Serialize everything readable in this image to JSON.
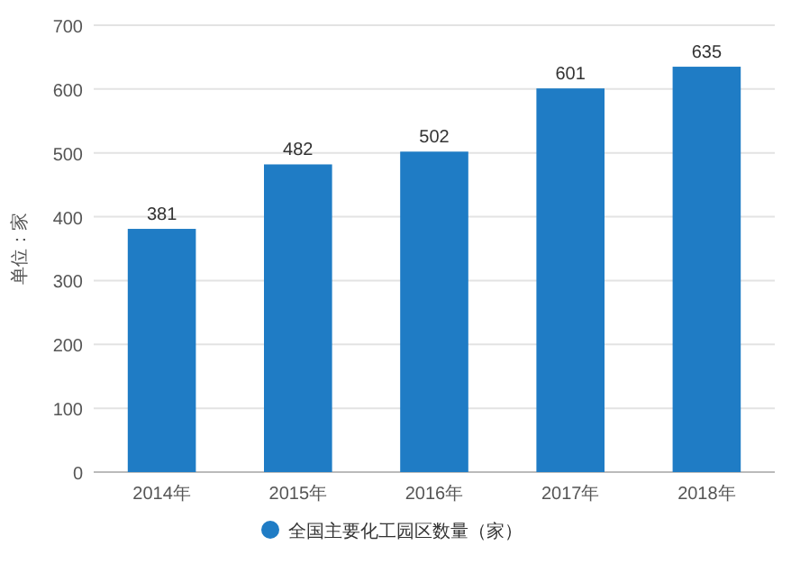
{
  "chart_data": {
    "type": "bar",
    "ylabel": "单位：家",
    "categories": [
      "2014年",
      "2015年",
      "2016年",
      "2017年",
      "2018年"
    ],
    "series": [
      {
        "name": "全国主要化工园区数量（家）",
        "color": "#1f7cc5",
        "values": [
          381,
          482,
          502,
          601,
          635
        ]
      }
    ],
    "ylim": [
      0,
      700
    ],
    "yticks": [
      0,
      100,
      200,
      300,
      400,
      500,
      600,
      700
    ],
    "grid": "y",
    "legend": "bottom",
    "data_labels": true
  }
}
